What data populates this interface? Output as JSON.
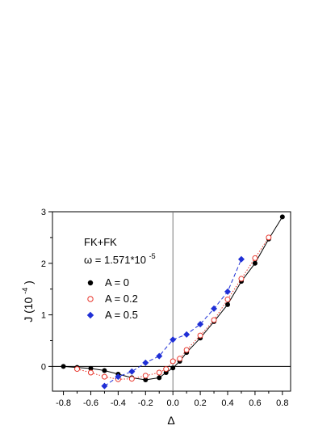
{
  "chart_data": {
    "type": "scatter",
    "title": "",
    "xlabel": "Δ",
    "ylabel_main": "J (10",
    "ylabel_exp": "-4",
    "ylabel_close": ")",
    "xlim": [
      -0.88,
      0.86
    ],
    "ylim": [
      -0.48,
      3.0
    ],
    "xticks": [
      -0.8,
      -0.6,
      -0.4,
      -0.2,
      0.0,
      0.2,
      0.4,
      0.6,
      0.8
    ],
    "xtick_labels": [
      "-0.8",
      "-0.6",
      "-0.4",
      "-0.2",
      "0.0",
      "0.2",
      "0.4",
      "0.6",
      "0.8"
    ],
    "yticks": [
      0,
      1,
      2,
      3
    ],
    "ytick_labels": [
      "0",
      "1",
      "2",
      "3"
    ],
    "grid": false,
    "annotations": {
      "line1": "FK+FK",
      "line2_main": "ω = 1.571*10",
      "line2_exp": "-5"
    },
    "legend_position": "left",
    "series": [
      {
        "name": "A = 0",
        "color": "#000000",
        "marker": "filled-circle",
        "line_style": "solid",
        "x": [
          -0.8,
          -0.7,
          -0.6,
          -0.5,
          -0.4,
          -0.3,
          -0.2,
          -0.1,
          -0.05,
          0.0,
          0.05,
          0.1,
          0.2,
          0.3,
          0.4,
          0.5,
          0.6,
          0.7,
          0.8
        ],
        "y": [
          0.0,
          -0.02,
          -0.04,
          -0.08,
          -0.15,
          -0.22,
          -0.26,
          -0.22,
          -0.12,
          -0.03,
          0.1,
          0.27,
          0.55,
          0.87,
          1.2,
          1.65,
          2.0,
          2.47,
          2.9
        ]
      },
      {
        "name": "A = 0.2",
        "color": "#e8352b",
        "marker": "open-circle",
        "line_style": "dotted",
        "x": [
          -0.7,
          -0.6,
          -0.5,
          -0.4,
          -0.3,
          -0.2,
          -0.1,
          -0.05,
          0.0,
          0.05,
          0.1,
          0.2,
          0.3,
          0.4,
          0.5,
          0.6,
          0.7
        ],
        "y": [
          -0.05,
          -0.12,
          -0.2,
          -0.25,
          -0.24,
          -0.18,
          -0.12,
          -0.05,
          0.1,
          0.15,
          0.32,
          0.6,
          0.9,
          1.3,
          1.7,
          2.1,
          2.5
        ]
      },
      {
        "name": "A = 0.5",
        "color": "#1f2fd6",
        "marker": "filled-diamond",
        "line_style": "dashed",
        "x": [
          -0.5,
          -0.4,
          -0.3,
          -0.2,
          -0.1,
          0.0,
          0.1,
          0.2,
          0.3,
          0.4,
          0.5
        ],
        "y": [
          -0.38,
          -0.2,
          -0.1,
          0.07,
          0.2,
          0.52,
          0.62,
          0.82,
          1.12,
          1.45,
          2.08
        ]
      }
    ]
  }
}
